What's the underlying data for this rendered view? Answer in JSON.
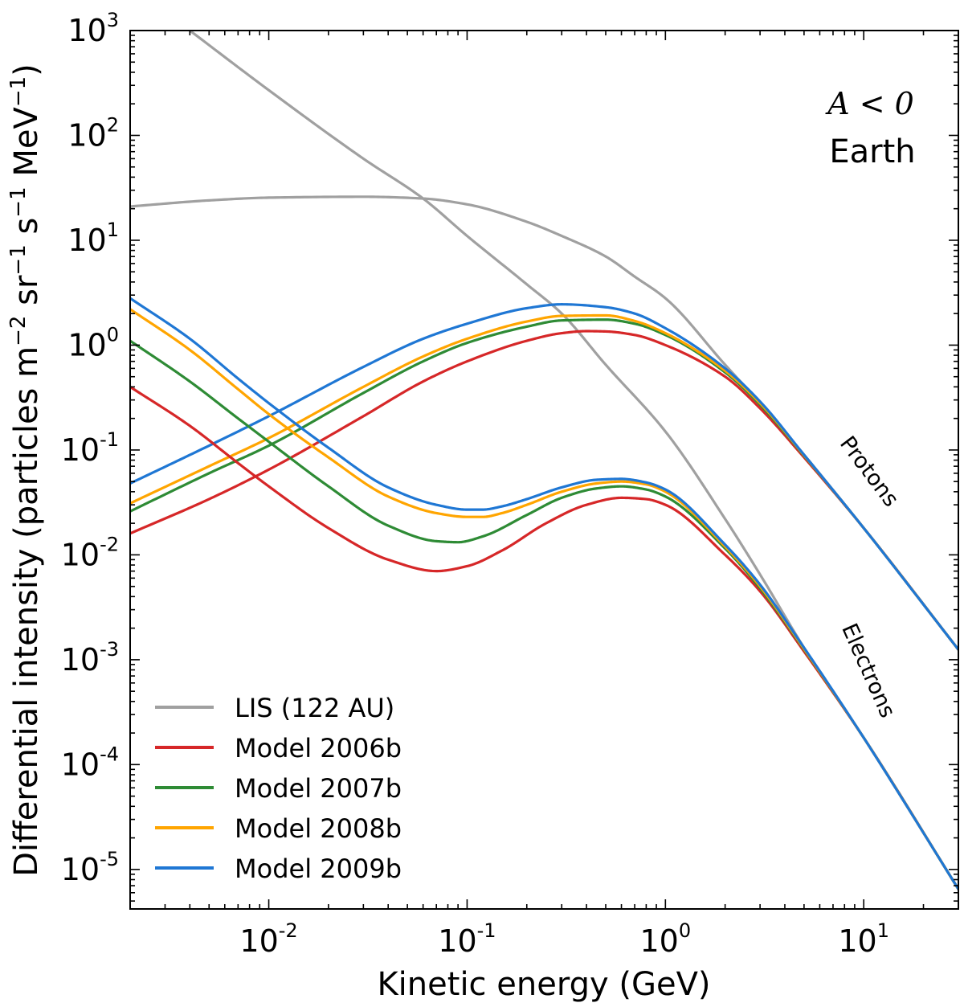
{
  "chart_data": {
    "type": "line",
    "x_scale": "log",
    "y_scale": "log",
    "xlim": [
      0.002,
      30
    ],
    "ylim": [
      4.2e-06,
      1000
    ],
    "xlabel": "Kinetic energy (GeV)",
    "ylabel_main": "Differential intensity  (particles m",
    "ylabel_units": {
      "exp1": "−2",
      "part2": " sr",
      "exp2": "−1",
      "part3": " s",
      "exp3": "−1",
      "part4": " MeV",
      "exp4": "−1",
      "part5": ")"
    },
    "x_ticks": [
      {
        "value": 0.01,
        "base": "10",
        "exp": "-2"
      },
      {
        "value": 0.1,
        "base": "10",
        "exp": "-1"
      },
      {
        "value": 1,
        "base": "10",
        "exp": "0"
      },
      {
        "value": 10,
        "base": "10",
        "exp": "1"
      }
    ],
    "y_ticks": [
      {
        "value": 1000,
        "base": "10",
        "exp": "3"
      },
      {
        "value": 100,
        "base": "10",
        "exp": "2"
      },
      {
        "value": 10,
        "base": "10",
        "exp": "1"
      },
      {
        "value": 1,
        "base": "10",
        "exp": "0"
      },
      {
        "value": 0.1,
        "base": "10",
        "exp": "-1"
      },
      {
        "value": 0.01,
        "base": "10",
        "exp": "-2"
      },
      {
        "value": 0.001,
        "base": "10",
        "exp": "-3"
      },
      {
        "value": 0.0001,
        "base": "10",
        "exp": "-4"
      },
      {
        "value": 1e-05,
        "base": "10",
        "exp": "-5"
      }
    ],
    "annotations": {
      "polarity": "A < 0",
      "location": "Earth",
      "protons_label": "Protons",
      "electrons_label": "Electrons"
    },
    "legend_position": "bottom-left",
    "legend": [
      {
        "label": "LIS (122 AU)",
        "color": "#a0a0a0"
      },
      {
        "label": "Model 2006b",
        "color": "#d62728"
      },
      {
        "label": "Model 2007b",
        "color": "#2e8b35"
      },
      {
        "label": "Model 2008b",
        "color": "#ffa500"
      },
      {
        "label": "Model 2009b",
        "color": "#1f77d4"
      }
    ],
    "series": [
      {
        "name": "LIS protons",
        "color": "#a0a0a0",
        "x": [
          0.002,
          0.005,
          0.01,
          0.03,
          0.06,
          0.1,
          0.2,
          0.3,
          0.5,
          0.7,
          1,
          2,
          3,
          5,
          10,
          30
        ],
        "y": [
          21,
          24,
          25.5,
          26,
          25,
          22,
          15,
          11,
          7,
          4.5,
          2.8,
          0.65,
          0.28,
          0.09,
          0.018,
          0.00125
        ]
      },
      {
        "name": "LIS electrons",
        "color": "#a0a0a0",
        "x": [
          0.004,
          0.01,
          0.03,
          0.06,
          0.1,
          0.2,
          0.3,
          0.5,
          1,
          2,
          3,
          5,
          10,
          30
        ],
        "y": [
          1000,
          270,
          60,
          25,
          11,
          3.8,
          2,
          0.65,
          0.15,
          0.022,
          0.0065,
          0.0013,
          0.00018,
          6.5e-06
        ]
      },
      {
        "name": "Model 2006b protons",
        "color": "#d62728",
        "x": [
          0.002,
          0.005,
          0.01,
          0.03,
          0.06,
          0.1,
          0.2,
          0.3,
          0.4,
          0.5,
          0.7,
          1,
          2,
          3,
          5,
          10,
          30
        ],
        "y": [
          0.016,
          0.034,
          0.065,
          0.21,
          0.45,
          0.7,
          1.1,
          1.3,
          1.36,
          1.35,
          1.25,
          1.0,
          0.5,
          0.25,
          0.085,
          0.018,
          0.00125
        ]
      },
      {
        "name": "Model 2007b protons",
        "color": "#2e8b35",
        "x": [
          0.002,
          0.005,
          0.01,
          0.03,
          0.06,
          0.1,
          0.2,
          0.3,
          0.5,
          0.7,
          1,
          2,
          3,
          5,
          10,
          30
        ],
        "y": [
          0.026,
          0.06,
          0.11,
          0.35,
          0.7,
          1.05,
          1.5,
          1.72,
          1.75,
          1.6,
          1.25,
          0.55,
          0.27,
          0.088,
          0.018,
          0.00125
        ]
      },
      {
        "name": "Model 2008b protons",
        "color": "#ffa500",
        "x": [
          0.002,
          0.005,
          0.01,
          0.03,
          0.06,
          0.1,
          0.2,
          0.3,
          0.5,
          0.7,
          1,
          2,
          3,
          5,
          10,
          30
        ],
        "y": [
          0.031,
          0.07,
          0.13,
          0.4,
          0.78,
          1.15,
          1.68,
          1.9,
          1.92,
          1.7,
          1.3,
          0.57,
          0.28,
          0.089,
          0.018,
          0.00125
        ]
      },
      {
        "name": "Model 2009b protons",
        "color": "#1f77d4",
        "x": [
          0.002,
          0.005,
          0.01,
          0.03,
          0.06,
          0.1,
          0.2,
          0.3,
          0.5,
          0.7,
          1,
          2,
          3,
          5,
          10,
          30
        ],
        "y": [
          0.048,
          0.11,
          0.21,
          0.62,
          1.15,
          1.6,
          2.25,
          2.45,
          2.3,
          2.0,
          1.45,
          0.6,
          0.29,
          0.09,
          0.018,
          0.00125
        ]
      },
      {
        "name": "Model 2006b electrons",
        "color": "#d62728",
        "x": [
          0.002,
          0.004,
          0.007,
          0.01,
          0.02,
          0.04,
          0.07,
          0.1,
          0.15,
          0.25,
          0.4,
          0.6,
          0.8,
          1,
          2,
          3,
          5,
          10,
          30
        ],
        "y": [
          0.4,
          0.17,
          0.075,
          0.045,
          0.018,
          0.009,
          0.007,
          0.0078,
          0.011,
          0.02,
          0.03,
          0.035,
          0.034,
          0.03,
          0.01,
          0.0045,
          0.0012,
          0.00018,
          6.5e-06
        ]
      },
      {
        "name": "Model 2007b electrons",
        "color": "#2e8b35",
        "x": [
          0.002,
          0.004,
          0.007,
          0.01,
          0.02,
          0.04,
          0.07,
          0.09,
          0.12,
          0.2,
          0.3,
          0.45,
          0.6,
          0.8,
          1,
          2,
          3,
          5,
          10,
          30
        ],
        "y": [
          1.1,
          0.45,
          0.2,
          0.12,
          0.045,
          0.019,
          0.0135,
          0.0132,
          0.015,
          0.024,
          0.035,
          0.043,
          0.045,
          0.042,
          0.036,
          0.0115,
          0.0048,
          0.00125,
          0.00018,
          6.5e-06
        ]
      },
      {
        "name": "Model 2008b electrons",
        "color": "#ffa500",
        "x": [
          0.002,
          0.004,
          0.007,
          0.01,
          0.02,
          0.04,
          0.07,
          0.1,
          0.12,
          0.15,
          0.2,
          0.3,
          0.45,
          0.6,
          0.8,
          1,
          2,
          3,
          5,
          10,
          30
        ],
        "y": [
          2.2,
          0.9,
          0.38,
          0.22,
          0.085,
          0.036,
          0.025,
          0.023,
          0.023,
          0.025,
          0.03,
          0.04,
          0.048,
          0.05,
          0.047,
          0.04,
          0.012,
          0.005,
          0.00127,
          0.00018,
          6.5e-06
        ]
      },
      {
        "name": "Model 2009b electrons",
        "color": "#1f77d4",
        "x": [
          0.002,
          0.004,
          0.007,
          0.01,
          0.02,
          0.04,
          0.07,
          0.1,
          0.12,
          0.15,
          0.2,
          0.3,
          0.45,
          0.6,
          0.8,
          1,
          2,
          3,
          5,
          10,
          30
        ],
        "y": [
          2.8,
          1.15,
          0.48,
          0.28,
          0.105,
          0.044,
          0.03,
          0.027,
          0.027,
          0.029,
          0.034,
          0.044,
          0.052,
          0.053,
          0.049,
          0.042,
          0.0125,
          0.0052,
          0.0013,
          0.00018,
          6.5e-06
        ]
      }
    ]
  }
}
